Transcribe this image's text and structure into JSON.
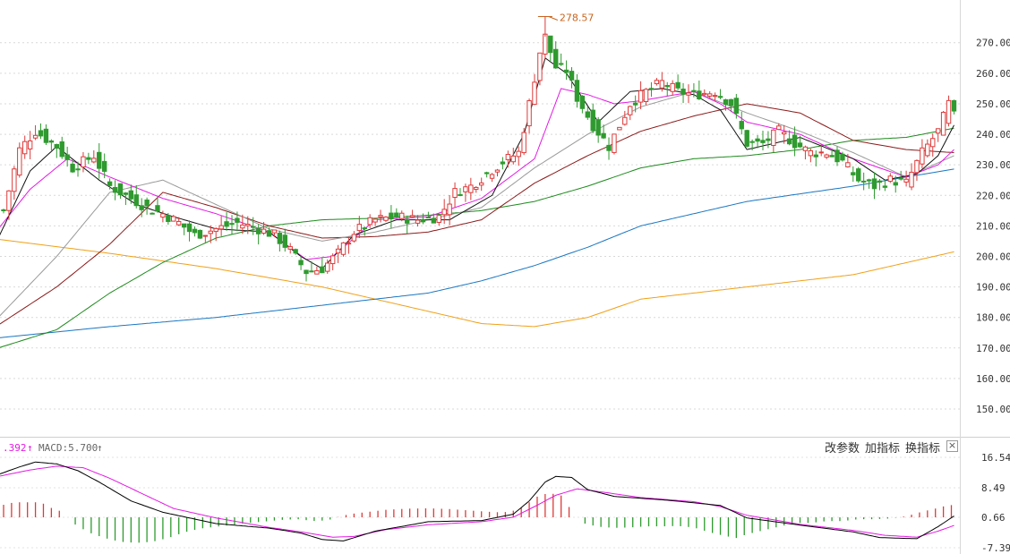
{
  "chart_data": {
    "type": "candlestick",
    "price_axis": {
      "ticks": [
        "270.00",
        "260.00",
        "250.00",
        "240.00",
        "230.00",
        "220.00",
        "210.00",
        "200.00",
        "190.00",
        "180.00",
        "170.00",
        "160.00",
        "150.00"
      ],
      "range": [
        141.5,
        284.0
      ]
    },
    "peak_annotation": {
      "label": "278.57",
      "value": 278.57,
      "candle_index": 102
    },
    "colors": {
      "up": "#dd3a3a",
      "down": "#2f9a2f",
      "ma_black": "#111111",
      "ma_magenta": "#e31ae3",
      "ma_gray": "#9a9a9a",
      "ma_darkred": "#8b1a1a",
      "ma_green": "#1c8a1c",
      "ma_blue": "#1976c2",
      "ma_orange": "#f0a018",
      "macd_dif": "#000000",
      "macd_dea": "#e31ae3",
      "annotation": "#c8641e"
    },
    "key_points": [
      {
        "i": 0,
        "p": 215
      },
      {
        "i": 3,
        "p": 235
      },
      {
        "i": 6,
        "p": 241
      },
      {
        "i": 10,
        "p": 236
      },
      {
        "i": 13,
        "p": 229
      },
      {
        "i": 17,
        "p": 233
      },
      {
        "i": 20,
        "p": 223
      },
      {
        "i": 23,
        "p": 220
      },
      {
        "i": 27,
        "p": 216
      },
      {
        "i": 30,
        "p": 214
      },
      {
        "i": 33,
        "p": 211
      },
      {
        "i": 36,
        "p": 207
      },
      {
        "i": 40,
        "p": 209
      },
      {
        "i": 44,
        "p": 211
      },
      {
        "i": 48,
        "p": 209
      },
      {
        "i": 51,
        "p": 207
      },
      {
        "i": 54,
        "p": 202
      },
      {
        "i": 57,
        "p": 195
      },
      {
        "i": 60,
        "p": 196
      },
      {
        "i": 63,
        "p": 201
      },
      {
        "i": 66,
        "p": 208
      },
      {
        "i": 70,
        "p": 212
      },
      {
        "i": 74,
        "p": 213
      },
      {
        "i": 78,
        "p": 212
      },
      {
        "i": 82,
        "p": 213
      },
      {
        "i": 85,
        "p": 221
      },
      {
        "i": 88,
        "p": 223
      },
      {
        "i": 91,
        "p": 227
      },
      {
        "i": 94,
        "p": 231
      },
      {
        "i": 97,
        "p": 234
      },
      {
        "i": 99,
        "p": 250
      },
      {
        "i": 101,
        "p": 267
      },
      {
        "i": 102,
        "p": 272
      },
      {
        "i": 104,
        "p": 262
      },
      {
        "i": 106,
        "p": 261
      },
      {
        "i": 108,
        "p": 252
      },
      {
        "i": 111,
        "p": 243
      },
      {
        "i": 114,
        "p": 236
      },
      {
        "i": 116,
        "p": 243
      },
      {
        "i": 118,
        "p": 250
      },
      {
        "i": 121,
        "p": 254
      },
      {
        "i": 124,
        "p": 257
      },
      {
        "i": 127,
        "p": 254
      },
      {
        "i": 130,
        "p": 253
      },
      {
        "i": 134,
        "p": 254
      },
      {
        "i": 137,
        "p": 250
      },
      {
        "i": 140,
        "p": 237
      },
      {
        "i": 143,
        "p": 237
      },
      {
        "i": 146,
        "p": 241
      },
      {
        "i": 149,
        "p": 237
      },
      {
        "i": 152,
        "p": 234
      },
      {
        "i": 155,
        "p": 234
      },
      {
        "i": 158,
        "p": 231
      },
      {
        "i": 161,
        "p": 225
      },
      {
        "i": 164,
        "p": 223
      },
      {
        "i": 167,
        "p": 225
      },
      {
        "i": 170,
        "p": 224
      },
      {
        "i": 173,
        "p": 234
      },
      {
        "i": 176,
        "p": 241
      },
      {
        "i": 178,
        "p": 250
      },
      {
        "i": 179,
        "p": 246
      }
    ],
    "moving_averages": [
      {
        "color": "ma_orange",
        "pts": [
          [
            -1,
            205.6
          ],
          [
            20,
            201
          ],
          [
            40,
            196
          ],
          [
            60,
            190
          ],
          [
            80,
            182
          ],
          [
            90,
            178
          ],
          [
            100,
            177
          ],
          [
            110,
            180
          ],
          [
            120,
            186
          ],
          [
            140,
            190
          ],
          [
            160,
            194
          ],
          [
            179,
            201.5
          ]
        ]
      },
      {
        "color": "ma_blue",
        "pts": [
          [
            -1,
            173.3
          ],
          [
            20,
            177
          ],
          [
            40,
            180
          ],
          [
            60,
            184
          ],
          [
            70,
            186
          ],
          [
            80,
            188
          ],
          [
            90,
            192
          ],
          [
            100,
            197
          ],
          [
            110,
            203
          ],
          [
            120,
            210
          ],
          [
            140,
            218
          ],
          [
            160,
            223
          ],
          [
            170,
            226
          ],
          [
            179,
            228.6
          ]
        ]
      },
      {
        "color": "ma_green",
        "pts": [
          [
            -1,
            170
          ],
          [
            10,
            176
          ],
          [
            20,
            188
          ],
          [
            30,
            198
          ],
          [
            40,
            206
          ],
          [
            50,
            210
          ],
          [
            60,
            212
          ],
          [
            70,
            212.5
          ],
          [
            80,
            213.5
          ],
          [
            90,
            215
          ],
          [
            100,
            218
          ],
          [
            110,
            223
          ],
          [
            120,
            229
          ],
          [
            130,
            232
          ],
          [
            140,
            233
          ],
          [
            150,
            235
          ],
          [
            160,
            238
          ],
          [
            170,
            239
          ],
          [
            179,
            242
          ]
        ]
      },
      {
        "color": "ma_darkred",
        "pts": [
          [
            -1,
            177.5
          ],
          [
            10,
            190
          ],
          [
            20,
            204
          ],
          [
            30,
            221
          ],
          [
            40,
            216
          ],
          [
            50,
            210
          ],
          [
            60,
            206
          ],
          [
            70,
            206.5
          ],
          [
            80,
            208
          ],
          [
            90,
            212
          ],
          [
            100,
            224
          ],
          [
            110,
            233
          ],
          [
            120,
            241
          ],
          [
            130,
            246
          ],
          [
            140,
            250
          ],
          [
            150,
            247
          ],
          [
            160,
            238
          ],
          [
            170,
            235
          ],
          [
            179,
            234
          ]
        ]
      },
      {
        "color": "ma_gray",
        "pts": [
          [
            -1,
            180
          ],
          [
            10,
            200
          ],
          [
            20,
            221
          ],
          [
            30,
            225
          ],
          [
            40,
            217
          ],
          [
            50,
            209
          ],
          [
            60,
            205
          ],
          [
            70,
            208
          ],
          [
            80,
            212
          ],
          [
            90,
            216
          ],
          [
            100,
            229
          ],
          [
            110,
            240
          ],
          [
            120,
            249
          ],
          [
            130,
            254
          ],
          [
            140,
            247
          ],
          [
            150,
            241
          ],
          [
            160,
            234
          ],
          [
            170,
            226
          ],
          [
            179,
            233
          ]
        ]
      },
      {
        "color": "ma_magenta",
        "pts": [
          [
            -1,
            209
          ],
          [
            5,
            222
          ],
          [
            12,
            232
          ],
          [
            20,
            226
          ],
          [
            30,
            219
          ],
          [
            40,
            214
          ],
          [
            50,
            208
          ],
          [
            57,
            199
          ],
          [
            62,
            200
          ],
          [
            70,
            212
          ],
          [
            80,
            213
          ],
          [
            90,
            219
          ],
          [
            100,
            232
          ],
          [
            105,
            255
          ],
          [
            110,
            253
          ],
          [
            115,
            250
          ],
          [
            120,
            251
          ],
          [
            130,
            254
          ],
          [
            135,
            250
          ],
          [
            140,
            244
          ],
          [
            150,
            240
          ],
          [
            160,
            232
          ],
          [
            170,
            226
          ],
          [
            176,
            230
          ],
          [
            179,
            235
          ]
        ]
      },
      {
        "color": "ma_black",
        "pts": [
          [
            -1,
            206
          ],
          [
            5,
            228
          ],
          [
            10,
            236
          ],
          [
            18,
            225
          ],
          [
            25,
            217
          ],
          [
            32,
            213
          ],
          [
            40,
            209
          ],
          [
            50,
            208
          ],
          [
            56,
            200
          ],
          [
            60,
            196
          ],
          [
            66,
            207
          ],
          [
            74,
            212
          ],
          [
            84,
            212
          ],
          [
            92,
            220
          ],
          [
            98,
            240
          ],
          [
            102,
            265
          ],
          [
            106,
            260
          ],
          [
            112,
            244
          ],
          [
            118,
            254
          ],
          [
            124,
            255
          ],
          [
            130,
            253
          ],
          [
            135,
            248
          ],
          [
            140,
            235
          ],
          [
            150,
            239
          ],
          [
            160,
            232
          ],
          [
            166,
            225
          ],
          [
            172,
            227
          ],
          [
            176,
            233
          ],
          [
            179,
            243
          ]
        ]
      }
    ],
    "macd": {
      "label_prefix": ".392",
      "label_up1": "↑",
      "label_name": "MACD:5.700",
      "label_up2": "↑",
      "axis_ticks": [
        "16.54",
        "8.49",
        "0.66",
        "-7.39"
      ],
      "range": [
        -7.39,
        16.54
      ],
      "dif": [
        [
          -1,
          12
        ],
        [
          3,
          14
        ],
        [
          6,
          15.3
        ],
        [
          10,
          14.8
        ],
        [
          14,
          13
        ],
        [
          18,
          10
        ],
        [
          24,
          5
        ],
        [
          30,
          2
        ],
        [
          40,
          -1
        ],
        [
          50,
          -2.2
        ],
        [
          56,
          -3.5
        ],
        [
          60,
          -5.2
        ],
        [
          64,
          -5.6
        ],
        [
          70,
          -3
        ],
        [
          80,
          -0.5
        ],
        [
          90,
          -0.2
        ],
        [
          96,
          1.5
        ],
        [
          99,
          5
        ],
        [
          102,
          10
        ],
        [
          104,
          11.5
        ],
        [
          107,
          11.2
        ],
        [
          110,
          8
        ],
        [
          115,
          6.2
        ],
        [
          125,
          5.2
        ],
        [
          135,
          3.8
        ],
        [
          140,
          0.5
        ],
        [
          150,
          -1.4
        ],
        [
          160,
          -3.2
        ],
        [
          165,
          -4.7
        ],
        [
          172,
          -5
        ],
        [
          176,
          -1.8
        ],
        [
          179,
          1
        ]
      ],
      "dea": [
        [
          -1,
          11.5
        ],
        [
          5,
          13.2
        ],
        [
          10,
          14.2
        ],
        [
          15,
          13.8
        ],
        [
          20,
          11
        ],
        [
          26,
          7
        ],
        [
          32,
          3
        ],
        [
          40,
          0.5
        ],
        [
          50,
          -2
        ],
        [
          56,
          -3.2
        ],
        [
          62,
          -4.6
        ],
        [
          66,
          -4.4
        ],
        [
          72,
          -2.6
        ],
        [
          80,
          -1.3
        ],
        [
          90,
          -0.5
        ],
        [
          96,
          0.7
        ],
        [
          100,
          3.5
        ],
        [
          104,
          6.5
        ],
        [
          108,
          8.2
        ],
        [
          112,
          7.5
        ],
        [
          120,
          5.9
        ],
        [
          130,
          4.8
        ],
        [
          135,
          3.5
        ],
        [
          140,
          1.2
        ],
        [
          150,
          -1.2
        ],
        [
          160,
          -2.8
        ],
        [
          166,
          -4.1
        ],
        [
          172,
          -4.6
        ],
        [
          176,
          -3
        ],
        [
          179,
          -1.5
        ]
      ],
      "histogram": [
        [
          -1,
          3
        ],
        [
          2,
          4
        ],
        [
          5,
          4
        ],
        [
          7,
          4
        ],
        [
          9,
          2.5
        ],
        [
          11,
          1.5
        ],
        [
          13,
          -1.5
        ],
        [
          16,
          -4
        ],
        [
          19,
          -5.5
        ],
        [
          22,
          -6.5
        ],
        [
          25,
          -6.8
        ],
        [
          28,
          -6.5
        ],
        [
          31,
          -5.5
        ],
        [
          34,
          -4
        ],
        [
          37,
          -3
        ],
        [
          40,
          -2.5
        ],
        [
          43,
          -2
        ],
        [
          46,
          -1.5
        ],
        [
          50,
          -1
        ],
        [
          53,
          -0.6
        ],
        [
          56,
          -0.5
        ],
        [
          58,
          -1
        ],
        [
          61,
          -0.8
        ],
        [
          64,
          0.5
        ],
        [
          66,
          1
        ],
        [
          69,
          1.5
        ],
        [
          72,
          2
        ],
        [
          76,
          2.3
        ],
        [
          80,
          2.4
        ],
        [
          84,
          2.2
        ],
        [
          88,
          1.8
        ],
        [
          91,
          1.5
        ],
        [
          94,
          1.3
        ],
        [
          97,
          2
        ],
        [
          99,
          4
        ],
        [
          101,
          6
        ],
        [
          103,
          6.4
        ],
        [
          105,
          5.8
        ],
        [
          106,
          4
        ],
        [
          107,
          1.5
        ],
        [
          109,
          -1.5
        ],
        [
          112,
          -2.5
        ],
        [
          115,
          -2.8
        ],
        [
          118,
          -2.7
        ],
        [
          121,
          -2.4
        ],
        [
          124,
          -2.4
        ],
        [
          127,
          -2.3
        ],
        [
          130,
          -2.7
        ],
        [
          133,
          -4
        ],
        [
          136,
          -5
        ],
        [
          138,
          -5.5
        ],
        [
          140,
          -4.5
        ],
        [
          143,
          -3.5
        ],
        [
          146,
          -2.5
        ],
        [
          149,
          -1.5
        ],
        [
          152,
          -1.5
        ],
        [
          155,
          -1
        ],
        [
          158,
          -1
        ],
        [
          161,
          -0.5
        ],
        [
          164,
          -0.5
        ],
        [
          167,
          -0.3
        ],
        [
          170,
          0.3
        ],
        [
          173,
          1.5
        ],
        [
          176,
          2.5
        ],
        [
          178,
          3.3
        ],
        [
          179,
          3.2
        ]
      ]
    }
  },
  "indicator_toolbar": {
    "modify_params": "改参数",
    "add_indicator": "加指标",
    "switch_indicator": "换指标",
    "close_symbol": "×"
  }
}
